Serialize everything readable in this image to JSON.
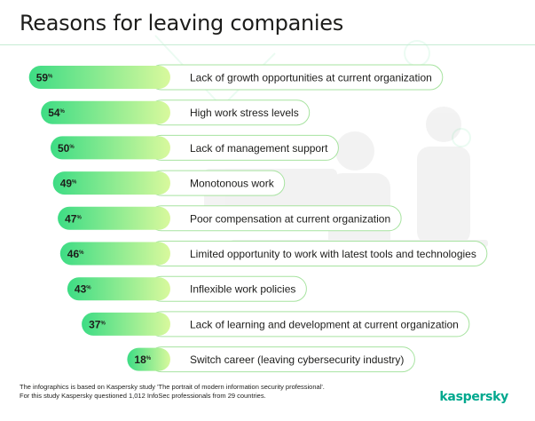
{
  "title": "Reasons for leaving companies",
  "footnote_line1": "The infographics is based on Kaspersky study 'The portrait of modern information security professional'.",
  "footnote_line2": "For this study Kaspersky questioned 1,012 InfoSec professionals from 29 countries.",
  "brand": "kaspersky",
  "colors": {
    "bar_start": "#3ddc84",
    "bar_end": "#d9f99d",
    "pill_border": "#a7e3a0",
    "brand": "#00a88e"
  },
  "chart_data": {
    "type": "bar",
    "orientation": "horizontal",
    "unit": "%",
    "categories": [
      "Lack of growth opportunities at current organization",
      "High work stress levels",
      "Lack of management support",
      "Monotonous work",
      "Poor compensation at current organization",
      "Limited opportunity to work with latest tools and technologies",
      "Inflexible work policies",
      "Lack of learning and development at current organization",
      "Switch career (leaving cybersecurity industry)"
    ],
    "values": [
      59,
      54,
      50,
      49,
      47,
      46,
      43,
      37,
      18
    ]
  }
}
